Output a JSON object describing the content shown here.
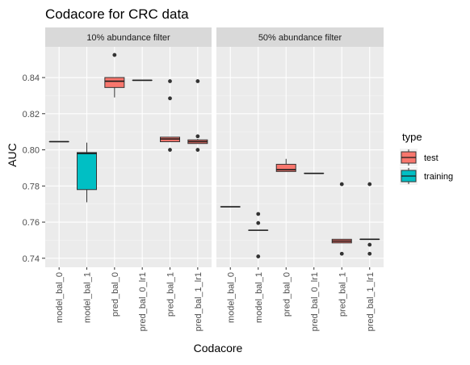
{
  "chart_data": {
    "type": "boxplot",
    "title": "Codacore for CRC data",
    "xlabel": "Codacore",
    "ylabel": "AUC",
    "ylim": [
      0.735,
      0.857
    ],
    "yticks": [
      0.74,
      0.76,
      0.78,
      0.8,
      0.82,
      0.84
    ],
    "ytick_labels": [
      "0.74",
      "0.76",
      "0.78",
      "0.80",
      "0.82",
      "0.84"
    ],
    "categories": [
      "model_bal_0",
      "model_bal_1",
      "pred_bal_0",
      "pred_bal_0_lr1",
      "pred_bal_1",
      "pred_bal_1_lr1"
    ],
    "grid": true,
    "legend": {
      "title": "type",
      "position": "right",
      "entries": [
        {
          "name": "test",
          "color": "#F8766D"
        },
        {
          "name": "training",
          "color": "#00BFC4"
        }
      ]
    },
    "panels": [
      {
        "label": "10% abundance filter",
        "boxes": [
          {
            "category": "model_bal_0",
            "type": "training",
            "min": 0.8045,
            "q1": 0.8045,
            "median": 0.8045,
            "q3": 0.8045,
            "max": 0.8045,
            "outliers": []
          },
          {
            "category": "model_bal_1",
            "type": "training",
            "min": 0.771,
            "q1": 0.778,
            "median": 0.798,
            "q3": 0.7985,
            "max": 0.804,
            "outliers": []
          },
          {
            "category": "pred_bal_0",
            "type": "test",
            "min": 0.829,
            "q1": 0.8345,
            "median": 0.838,
            "q3": 0.84,
            "max": 0.84,
            "outliers": [
              0.8525
            ]
          },
          {
            "category": "pred_bal_0_lr1",
            "type": "test",
            "min": 0.8385,
            "q1": 0.8385,
            "median": 0.8385,
            "q3": 0.8385,
            "max": 0.8385,
            "outliers": []
          },
          {
            "category": "pred_bal_1",
            "type": "test",
            "min": 0.8045,
            "q1": 0.8045,
            "median": 0.806,
            "q3": 0.807,
            "max": 0.807,
            "outliers": [
              0.838,
              0.8285,
              0.8
            ]
          },
          {
            "category": "pred_bal_1_lr1",
            "type": "test",
            "min": 0.8035,
            "q1": 0.8035,
            "median": 0.8045,
            "q3": 0.8055,
            "max": 0.806,
            "outliers": [
              0.838,
              0.8075,
              0.8
            ]
          }
        ]
      },
      {
        "label": "50% abundance filter",
        "boxes": [
          {
            "category": "model_bal_0",
            "type": "training",
            "min": 0.7685,
            "q1": 0.7685,
            "median": 0.7685,
            "q3": 0.7685,
            "max": 0.7685,
            "outliers": []
          },
          {
            "category": "model_bal_1",
            "type": "training",
            "min": 0.7555,
            "q1": 0.7555,
            "median": 0.7555,
            "q3": 0.7555,
            "max": 0.7555,
            "outliers": [
              0.7645,
              0.7595,
              0.741
            ]
          },
          {
            "category": "pred_bal_0",
            "type": "test",
            "min": 0.788,
            "q1": 0.788,
            "median": 0.789,
            "q3": 0.792,
            "max": 0.795,
            "outliers": []
          },
          {
            "category": "pred_bal_0_lr1",
            "type": "test",
            "min": 0.787,
            "q1": 0.787,
            "median": 0.787,
            "q3": 0.787,
            "max": 0.787,
            "outliers": []
          },
          {
            "category": "pred_bal_1",
            "type": "test",
            "min": 0.7485,
            "q1": 0.7485,
            "median": 0.7495,
            "q3": 0.7505,
            "max": 0.7505,
            "outliers": [
              0.781,
              0.7425
            ]
          },
          {
            "category": "pred_bal_1_lr1",
            "type": "test",
            "min": 0.7505,
            "q1": 0.7505,
            "median": 0.7505,
            "q3": 0.7505,
            "max": 0.7505,
            "outliers": [
              0.781,
              0.7475,
              0.7425
            ]
          }
        ]
      }
    ]
  }
}
